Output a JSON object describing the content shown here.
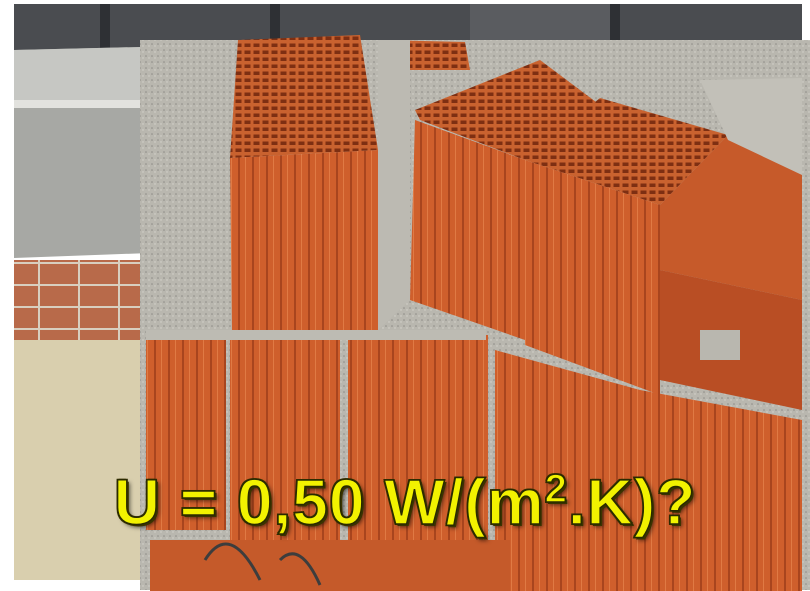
{
  "caption": {
    "prefix": "U = 0,50 W/(m",
    "superscript": "2",
    "suffix": ".K)?",
    "color": "#f2f200"
  },
  "colors": {
    "brick": "#c8582a",
    "brick_dark": "#9a3f1c",
    "mortar": "#b8b6ae",
    "concrete": "#a9aaa6",
    "ground": "#d9cfae",
    "border": "#ffffff"
  }
}
